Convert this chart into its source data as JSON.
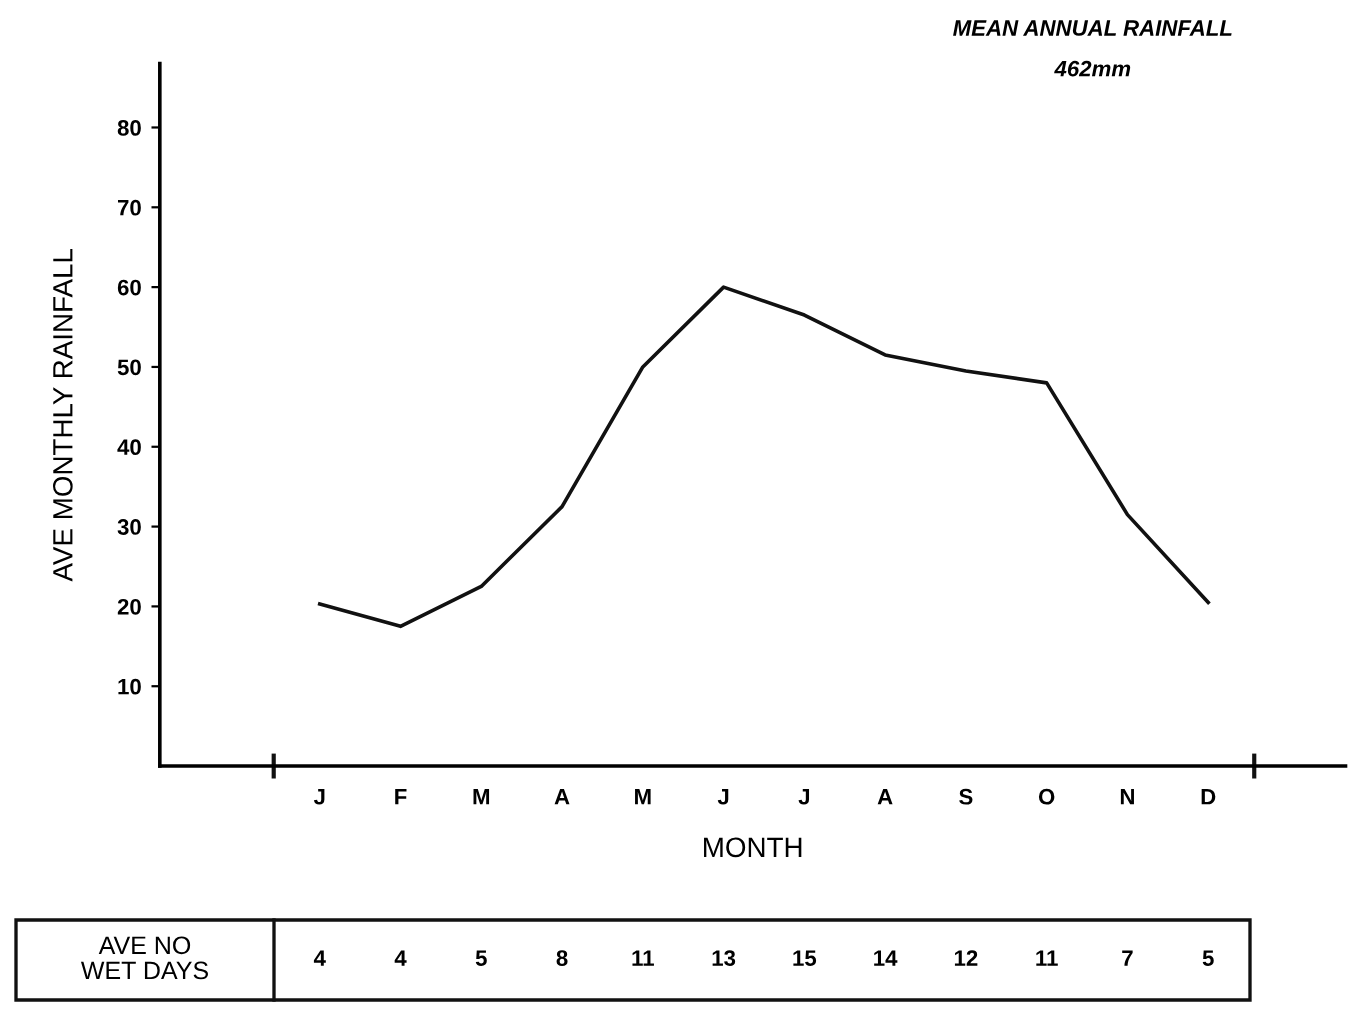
{
  "chart_data": {
    "type": "line",
    "title": "MEAN ANNUAL RAINFALL",
    "subtitle": "462mm",
    "xlabel": "MONTH",
    "ylabel": "AVE MONTHLY RAINFALL",
    "categories": [
      "J",
      "F",
      "M",
      "A",
      "M",
      "J",
      "J",
      "A",
      "S",
      "O",
      "N",
      "D"
    ],
    "series": [
      {
        "color": "#111111",
        "values": [
          20.3,
          17.5,
          22.5,
          32.5,
          50,
          60,
          56.5,
          51.5,
          49.5,
          48,
          31.5,
          20.5
        ]
      }
    ],
    "ylim": [
      0,
      88
    ],
    "yticks": [
      10,
      20,
      30,
      40,
      50,
      60,
      70,
      80
    ],
    "grid": false,
    "legend": false,
    "marker": "none",
    "line_style": "solid",
    "annotations": [
      "AVE NO\nWET DAYS",
      "4",
      "4",
      "5",
      "8",
      "11",
      "13",
      "15",
      "14",
      "12",
      "11",
      "7",
      "5"
    ]
  }
}
